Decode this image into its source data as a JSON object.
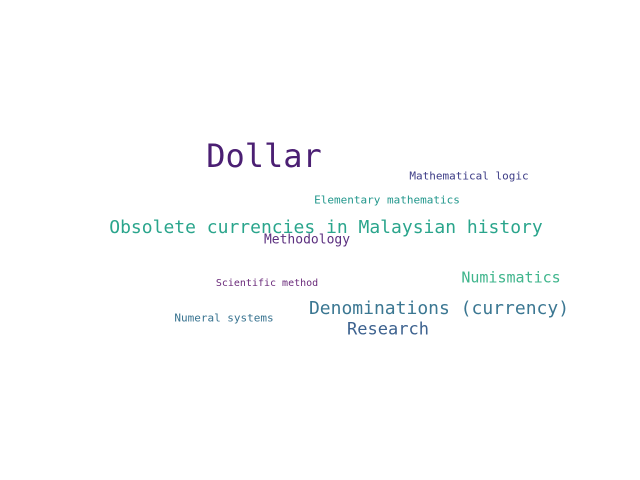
{
  "word_cloud": {
    "words": [
      {
        "key": "dollar",
        "text": "Dollar",
        "color": "#4b1f73"
      },
      {
        "key": "obsolete",
        "text": "Obsolete currencies in Malaysian history",
        "color": "#2aa58c"
      },
      {
        "key": "denom",
        "text": "Denominations (currency)",
        "color": "#3b7792"
      },
      {
        "key": "research",
        "text": "Research",
        "color": "#3d628f"
      },
      {
        "key": "numismatics",
        "text": "Numismatics",
        "color": "#3fb58c"
      },
      {
        "key": "method",
        "text": "Methodology",
        "color": "#5b2f7f"
      },
      {
        "key": "mathlogic",
        "text": "Mathematical logic",
        "color": "#3d3c86"
      },
      {
        "key": "elemmath",
        "text": "Elementary mathematics",
        "color": "#22978c"
      },
      {
        "key": "numeral",
        "text": "Numeral systems",
        "color": "#37728f"
      },
      {
        "key": "scimethod",
        "text": "Scientific method",
        "color": "#6a2a7a"
      }
    ]
  }
}
